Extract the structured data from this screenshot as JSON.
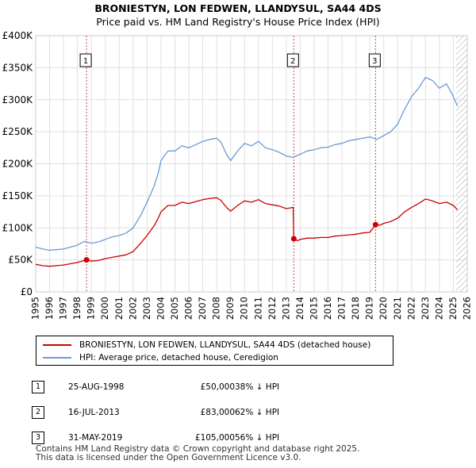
{
  "title": "BRONIESTYN, LON FEDWEN, LLANDYSUL, SA44 4DS",
  "subtitle": "Price paid vs. HM Land Registry's House Price Index (HPI)",
  "colors": {
    "property": "#cc0000",
    "hpi": "#6b9bd2",
    "grid": "#e0e0e0",
    "marker_line": "#d44444",
    "hatch": "#a0a0a0"
  },
  "legend": [
    {
      "label": "BRONIESTYN, LON FEDWEN, LLANDYSUL, SA44 4DS (detached house)",
      "color": "#cc0000"
    },
    {
      "label": "HPI: Average price, detached house, Ceredigion",
      "color": "#6b9bd2"
    }
  ],
  "sales": [
    {
      "num": "1",
      "date": "25-AUG-1998",
      "price": "£50,000",
      "hpi": "38% ↓ HPI"
    },
    {
      "num": "2",
      "date": "16-JUL-2013",
      "price": "£83,000",
      "hpi": "62% ↓ HPI"
    },
    {
      "num": "3",
      "date": "31-MAY-2019",
      "price": "£105,000",
      "hpi": "56% ↓ HPI"
    }
  ],
  "footer": {
    "line1": "Contains HM Land Registry data © Crown copyright and database right 2025.",
    "line2": "This data is licensed under the Open Government Licence v3.0."
  },
  "chart_data": {
    "type": "line",
    "title": "BRONIESTYN, LON FEDWEN, LLANDYSUL, SA44 4DS",
    "subtitle": "Price paid vs. HM Land Registry's House Price Index (HPI)",
    "xlabel": "",
    "ylabel": "",
    "xlim": [
      1995,
      2026
    ],
    "ylim": [
      0,
      400000
    ],
    "x_ticks": [
      1995,
      1996,
      1997,
      1998,
      1999,
      2000,
      2001,
      2002,
      2003,
      2004,
      2005,
      2006,
      2007,
      2008,
      2009,
      2010,
      2011,
      2012,
      2013,
      2014,
      2015,
      2016,
      2017,
      2018,
      2019,
      2020,
      2021,
      2022,
      2023,
      2024,
      2025,
      2026
    ],
    "y_ticks": [
      {
        "value": 0,
        "label": "£0"
      },
      {
        "value": 50000,
        "label": "£50K"
      },
      {
        "value": 100000,
        "label": "£100K"
      },
      {
        "value": 150000,
        "label": "£150K"
      },
      {
        "value": 200000,
        "label": "£200K"
      },
      {
        "value": 250000,
        "label": "£250K"
      },
      {
        "value": 300000,
        "label": "£300K"
      },
      {
        "value": 350000,
        "label": "£350K"
      },
      {
        "value": 400000,
        "label": "£400K"
      }
    ],
    "grid": true,
    "future_hatch_from": 2025.2,
    "series": [
      {
        "name": "HPI: Average price, detached house, Ceredigion",
        "color": "#6b9bd2",
        "points": [
          [
            1995.0,
            70000
          ],
          [
            1995.5,
            67000
          ],
          [
            1996.0,
            65000
          ],
          [
            1996.5,
            66000
          ],
          [
            1997.0,
            67000
          ],
          [
            1997.5,
            70000
          ],
          [
            1998.0,
            73000
          ],
          [
            1998.5,
            79000
          ],
          [
            1999.0,
            76000
          ],
          [
            1999.5,
            78000
          ],
          [
            2000.0,
            82000
          ],
          [
            2000.5,
            86000
          ],
          [
            2001.0,
            88000
          ],
          [
            2001.5,
            92000
          ],
          [
            2002.0,
            100000
          ],
          [
            2002.5,
            118000
          ],
          [
            2003.0,
            140000
          ],
          [
            2003.5,
            165000
          ],
          [
            2003.8,
            185000
          ],
          [
            2004.0,
            205000
          ],
          [
            2004.5,
            220000
          ],
          [
            2005.0,
            220000
          ],
          [
            2005.5,
            228000
          ],
          [
            2006.0,
            225000
          ],
          [
            2006.5,
            230000
          ],
          [
            2007.0,
            235000
          ],
          [
            2007.5,
            238000
          ],
          [
            2008.0,
            240000
          ],
          [
            2008.3,
            234000
          ],
          [
            2008.7,
            215000
          ],
          [
            2009.0,
            205000
          ],
          [
            2009.5,
            220000
          ],
          [
            2010.0,
            232000
          ],
          [
            2010.5,
            228000
          ],
          [
            2011.0,
            235000
          ],
          [
            2011.5,
            225000
          ],
          [
            2012.0,
            222000
          ],
          [
            2012.5,
            218000
          ],
          [
            2013.0,
            212000
          ],
          [
            2013.5,
            210000
          ],
          [
            2014.0,
            215000
          ],
          [
            2014.5,
            220000
          ],
          [
            2015.0,
            222000
          ],
          [
            2015.5,
            225000
          ],
          [
            2016.0,
            226000
          ],
          [
            2016.5,
            230000
          ],
          [
            2017.0,
            232000
          ],
          [
            2017.5,
            236000
          ],
          [
            2018.0,
            238000
          ],
          [
            2018.5,
            240000
          ],
          [
            2019.0,
            242000
          ],
          [
            2019.5,
            238000
          ],
          [
            2020.0,
            244000
          ],
          [
            2020.5,
            250000
          ],
          [
            2021.0,
            262000
          ],
          [
            2021.5,
            285000
          ],
          [
            2022.0,
            305000
          ],
          [
            2022.5,
            318000
          ],
          [
            2023.0,
            335000
          ],
          [
            2023.5,
            330000
          ],
          [
            2024.0,
            318000
          ],
          [
            2024.5,
            325000
          ],
          [
            2025.0,
            305000
          ],
          [
            2025.3,
            290000
          ]
        ]
      },
      {
        "name": "BRONIESTYN, LON FEDWEN, LLANDYSUL, SA44 4DS (detached house)",
        "color": "#cc0000",
        "points": [
          [
            1995.0,
            43000
          ],
          [
            1995.5,
            41000
          ],
          [
            1996.0,
            40000
          ],
          [
            1996.5,
            41000
          ],
          [
            1997.0,
            42000
          ],
          [
            1997.5,
            44000
          ],
          [
            1998.0,
            46000
          ],
          [
            1998.65,
            50000
          ],
          [
            1999.0,
            48000
          ],
          [
            1999.5,
            49000
          ],
          [
            2000.0,
            52000
          ],
          [
            2000.5,
            54000
          ],
          [
            2001.0,
            56000
          ],
          [
            2001.5,
            58000
          ],
          [
            2002.0,
            63000
          ],
          [
            2002.5,
            75000
          ],
          [
            2003.0,
            88000
          ],
          [
            2003.5,
            103000
          ],
          [
            2003.8,
            115000
          ],
          [
            2004.0,
            125000
          ],
          [
            2004.5,
            135000
          ],
          [
            2005.0,
            135000
          ],
          [
            2005.5,
            140000
          ],
          [
            2006.0,
            138000
          ],
          [
            2006.5,
            141000
          ],
          [
            2007.0,
            144000
          ],
          [
            2007.5,
            146000
          ],
          [
            2008.0,
            147000
          ],
          [
            2008.3,
            143000
          ],
          [
            2008.7,
            132000
          ],
          [
            2009.0,
            126000
          ],
          [
            2009.5,
            135000
          ],
          [
            2010.0,
            142000
          ],
          [
            2010.5,
            140000
          ],
          [
            2011.0,
            144000
          ],
          [
            2011.5,
            138000
          ],
          [
            2012.0,
            136000
          ],
          [
            2012.5,
            134000
          ],
          [
            2013.0,
            130000
          ],
          [
            2013.5,
            132000
          ],
          [
            2013.54,
            83000
          ],
          [
            2013.8,
            80000
          ],
          [
            2014.0,
            82000
          ],
          [
            2014.5,
            84000
          ],
          [
            2015.0,
            84000
          ],
          [
            2015.5,
            85000
          ],
          [
            2016.0,
            85000
          ],
          [
            2016.5,
            87000
          ],
          [
            2017.0,
            88000
          ],
          [
            2017.5,
            89000
          ],
          [
            2018.0,
            90000
          ],
          [
            2018.5,
            92000
          ],
          [
            2019.0,
            93000
          ],
          [
            2019.41,
            105000
          ],
          [
            2019.7,
            104000
          ],
          [
            2020.0,
            107000
          ],
          [
            2020.5,
            110000
          ],
          [
            2021.0,
            115000
          ],
          [
            2021.5,
            125000
          ],
          [
            2022.0,
            132000
          ],
          [
            2022.5,
            138000
          ],
          [
            2023.0,
            145000
          ],
          [
            2023.5,
            142000
          ],
          [
            2024.0,
            138000
          ],
          [
            2024.5,
            140000
          ],
          [
            2025.0,
            135000
          ],
          [
            2025.3,
            128000
          ]
        ]
      }
    ],
    "sale_markers": [
      {
        "label": "1",
        "x": 1998.65,
        "price": 50000
      },
      {
        "label": "2",
        "x": 2013.54,
        "price": 83000
      },
      {
        "label": "3",
        "x": 2019.41,
        "price": 105000
      }
    ]
  }
}
